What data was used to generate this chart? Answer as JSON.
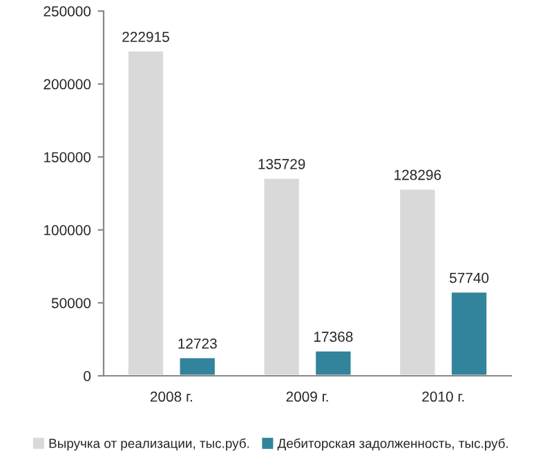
{
  "chart_data": {
    "type": "bar",
    "categories": [
      "2008 г.",
      "2009 г.",
      "2010 г."
    ],
    "series": [
      {
        "name": "Выручка от реализации, тыс.руб.",
        "color": "#d9d9d9",
        "values": [
          222915,
          135729,
          128296
        ]
      },
      {
        "name": "Дебиторская задолженность, тыс.руб.",
        "color": "#31849b",
        "values": [
          12723,
          17368,
          57740
        ]
      }
    ],
    "ylim": [
      0,
      250000
    ],
    "yticks": [
      0,
      50000,
      100000,
      150000,
      200000,
      250000
    ],
    "grid": false,
    "legend": "bottom",
    "data_labels": true
  }
}
